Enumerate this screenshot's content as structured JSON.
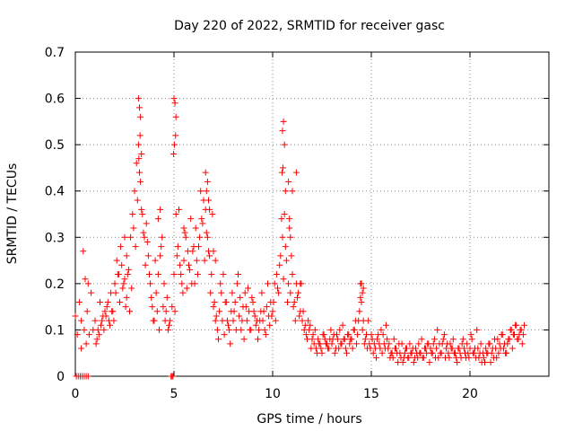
{
  "chart_data": {
    "type": "scatter",
    "title": "Day 220 of 2022, SRMTID for receiver gasc",
    "xlabel": "GPS time / hours",
    "ylabel": "SRMTID / TECUs",
    "xlim": [
      0,
      24
    ],
    "ylim": [
      0,
      0.7
    ],
    "xticks": [
      0,
      5,
      10,
      15,
      20
    ],
    "yticks": [
      0,
      0.1,
      0.2,
      0.3,
      0.4,
      0.5,
      0.6,
      0.7
    ],
    "xtick_labels": [
      "0",
      "5",
      "10",
      "15",
      "20"
    ],
    "ytick_labels": [
      "0",
      "0.1",
      "0.2",
      "0.3",
      "0.4",
      "0.5",
      "0.6",
      "0.7"
    ],
    "grid": true,
    "marker": "+",
    "color": "#ff0000",
    "series": [
      {
        "name": "SRMTID",
        "x": [
          0.0,
          0.1,
          0.2,
          0.3,
          0.4,
          0.5,
          0.6,
          0.7,
          0.8,
          0.9,
          1.0,
          1.1,
          1.2,
          1.3,
          1.4,
          1.5,
          1.6,
          1.7,
          1.8,
          1.9,
          2.0,
          2.1,
          2.2,
          2.3,
          2.4,
          2.5,
          2.6,
          2.7,
          2.8,
          2.9,
          3.0,
          3.1,
          3.2,
          3.3,
          3.4,
          3.5,
          3.6,
          3.7,
          3.8,
          3.9,
          4.0,
          4.1,
          4.2,
          4.3,
          4.4,
          4.5,
          4.6,
          4.7,
          4.8,
          4.9,
          5.0,
          5.1,
          5.2,
          5.3,
          5.4,
          5.5,
          5.6,
          5.7,
          5.8,
          5.9,
          6.0,
          6.1,
          6.2,
          6.3,
          6.4,
          6.5,
          6.6,
          6.7,
          6.8,
          6.9,
          7.0,
          7.1,
          7.2,
          7.3,
          7.4,
          7.5,
          7.6,
          7.7,
          7.8,
          7.9,
          8.0,
          8.1,
          8.2,
          8.3,
          8.4,
          8.5,
          8.6,
          8.7,
          8.8,
          8.9,
          9.0,
          9.1,
          9.2,
          9.3,
          9.4,
          9.5,
          9.6,
          9.7,
          9.8,
          9.9,
          10.0,
          10.1,
          10.2,
          10.3,
          10.4,
          10.5,
          10.6,
          10.7,
          10.8,
          10.9,
          11.0,
          11.1,
          11.2,
          11.3,
          11.4,
          11.5,
          11.6,
          11.7,
          11.8,
          11.9,
          12.0,
          12.1,
          12.2,
          12.3,
          12.4,
          12.5,
          12.6,
          12.7,
          12.8,
          12.9,
          13.0,
          13.1,
          13.2,
          13.3,
          13.4,
          13.5,
          13.6,
          13.7,
          13.8,
          13.9,
          14.0,
          14.1,
          14.2,
          14.3,
          14.4,
          14.5,
          14.6,
          14.7,
          14.8,
          14.9,
          15.0,
          15.1,
          15.2,
          15.3,
          15.4,
          15.5,
          15.6,
          15.7,
          15.8,
          15.9,
          16.0,
          16.1,
          16.2,
          16.3,
          16.4,
          16.5,
          16.6,
          16.7,
          16.8,
          16.9,
          17.0,
          17.1,
          17.2,
          17.3,
          17.4,
          17.5,
          17.6,
          17.7,
          17.8,
          17.9,
          18.0,
          18.1,
          18.2,
          18.3,
          18.4,
          18.5,
          18.6,
          18.7,
          18.8,
          18.9,
          19.0,
          19.1,
          19.2,
          19.3,
          19.4,
          19.5,
          19.6,
          19.7,
          19.8,
          19.9,
          20.0,
          20.1,
          20.2,
          20.3,
          20.4,
          20.5,
          20.6,
          20.7,
          20.8,
          20.9,
          21.0,
          21.1,
          21.2,
          21.3,
          21.4,
          21.5,
          21.6,
          21.7,
          21.8,
          21.9,
          22.0,
          22.1,
          22.2,
          22.3,
          22.4,
          22.5,
          22.6,
          22.7,
          0.05,
          0.15,
          0.25,
          0.35,
          0.45,
          0.55,
          0.65,
          4.85,
          4.9,
          4.95,
          0.3,
          0.45,
          0.55,
          0.65,
          1.05,
          1.15,
          1.25,
          1.35,
          1.45,
          1.55,
          1.65,
          1.75,
          1.85,
          1.95,
          2.05,
          2.15,
          2.25,
          2.35,
          2.45,
          2.55,
          2.65,
          2.75,
          2.85,
          2.95,
          3.05,
          3.15,
          3.25,
          3.35,
          3.45,
          3.55,
          3.65,
          3.75,
          3.85,
          3.95,
          4.05,
          4.15,
          4.25,
          4.35,
          4.45,
          4.55,
          4.65,
          4.75,
          5.05,
          5.15,
          5.25,
          5.35,
          5.45,
          5.55,
          5.65,
          5.75,
          5.85,
          5.95,
          6.05,
          6.15,
          6.25,
          6.35,
          6.45,
          6.55,
          6.65,
          6.75,
          6.85,
          6.95,
          7.05,
          7.15,
          7.25,
          7.35,
          7.45,
          7.55,
          7.65,
          7.75,
          7.85,
          7.95,
          8.05,
          8.15,
          8.25,
          8.35,
          8.45,
          8.55,
          8.65,
          8.75,
          8.85,
          8.95,
          9.05,
          9.15,
          9.25,
          9.35,
          9.45,
          9.55,
          9.65,
          9.75,
          9.85,
          9.95,
          10.05,
          10.15,
          10.25,
          10.35,
          10.45,
          10.55,
          10.65,
          10.75,
          10.85,
          10.95,
          11.05,
          11.15,
          11.25,
          11.35,
          11.45,
          11.55,
          11.65,
          11.75,
          11.85,
          11.95,
          12.05,
          12.15,
          12.25,
          12.35,
          12.45,
          12.55,
          12.65,
          12.75,
          12.85,
          12.95,
          13.05,
          13.15,
          13.25,
          13.35,
          13.45,
          13.55,
          13.65,
          13.75,
          13.85,
          13.95,
          14.05,
          14.15,
          14.25,
          14.35,
          14.45,
          14.55,
          14.65,
          14.75,
          14.85,
          14.95,
          15.05,
          15.15,
          15.25,
          15.35,
          15.45,
          15.55,
          15.65,
          15.75,
          15.85,
          15.95,
          16.05,
          16.15,
          16.25,
          16.35,
          16.45,
          16.55,
          16.65,
          16.75,
          16.85,
          16.95,
          17.05,
          17.15,
          17.25,
          17.35,
          17.45,
          17.55,
          17.65,
          17.75,
          17.85,
          17.95,
          18.05,
          18.15,
          18.25,
          18.35,
          18.45,
          18.55,
          18.65,
          18.75,
          18.85,
          18.95,
          19.05,
          19.15,
          19.25,
          19.35,
          19.45,
          19.55,
          19.65,
          19.75,
          19.85,
          19.95,
          20.05,
          20.15,
          20.25,
          20.35,
          20.45,
          20.55,
          20.65,
          20.75,
          20.85,
          20.95,
          21.05,
          21.15,
          21.25,
          21.35,
          21.45,
          21.55,
          21.65,
          21.75,
          21.85,
          21.95,
          22.05,
          22.15,
          22.25,
          22.35,
          22.45,
          22.55,
          22.65,
          22.75,
          3.2,
          3.25,
          3.3,
          3.28,
          3.22,
          3.35,
          5.0,
          5.05,
          5.1,
          5.08,
          5.02,
          4.98,
          10.5,
          10.55,
          10.6,
          10.52,
          10.48,
          10.65,
          6.6,
          6.7,
          6.65,
          6.75,
          6.8,
          10.8,
          10.85,
          10.9,
          11.0,
          11.2,
          14.5,
          14.55,
          14.6,
          14.45,
          11.4,
          7.0,
          7.1,
          2.5,
          2.6,
          4.2,
          4.3,
          5.5
        ],
        "y": [
          0.13,
          0.09,
          0.16,
          0.12,
          0.27,
          0.21,
          0.14,
          0.09,
          0.18,
          0.1,
          0.12,
          0.08,
          0.09,
          0.11,
          0.13,
          0.14,
          0.15,
          0.12,
          0.18,
          0.14,
          0.2,
          0.25,
          0.22,
          0.28,
          0.19,
          0.21,
          0.17,
          0.23,
          0.3,
          0.35,
          0.4,
          0.46,
          0.5,
          0.42,
          0.35,
          0.3,
          0.33,
          0.26,
          0.2,
          0.15,
          0.12,
          0.18,
          0.22,
          0.26,
          0.3,
          0.2,
          0.14,
          0.1,
          0.12,
          0.15,
          0.22,
          0.35,
          0.28,
          0.24,
          0.2,
          0.25,
          0.3,
          0.27,
          0.23,
          0.2,
          0.28,
          0.32,
          0.22,
          0.3,
          0.34,
          0.38,
          0.36,
          0.3,
          0.26,
          0.22,
          0.15,
          0.12,
          0.1,
          0.14,
          0.18,
          0.22,
          0.16,
          0.12,
          0.1,
          0.14,
          0.12,
          0.16,
          0.2,
          0.13,
          0.1,
          0.15,
          0.18,
          0.12,
          0.14,
          0.1,
          0.16,
          0.13,
          0.12,
          0.1,
          0.14,
          0.12,
          0.1,
          0.15,
          0.13,
          0.16,
          0.14,
          0.2,
          0.22,
          0.18,
          0.26,
          0.3,
          0.35,
          0.25,
          0.2,
          0.18,
          0.22,
          0.16,
          0.2,
          0.18,
          0.14,
          0.12,
          0.1,
          0.09,
          0.12,
          0.11,
          0.08,
          0.07,
          0.06,
          0.08,
          0.07,
          0.05,
          0.09,
          0.07,
          0.06,
          0.08,
          0.07,
          0.09,
          0.06,
          0.08,
          0.1,
          0.07,
          0.08,
          0.06,
          0.09,
          0.07,
          0.08,
          0.1,
          0.12,
          0.09,
          0.14,
          0.16,
          0.12,
          0.08,
          0.06,
          0.07,
          0.09,
          0.05,
          0.06,
          0.08,
          0.07,
          0.1,
          0.09,
          0.06,
          0.08,
          0.07,
          0.05,
          0.04,
          0.06,
          0.05,
          0.07,
          0.04,
          0.03,
          0.05,
          0.06,
          0.04,
          0.05,
          0.06,
          0.04,
          0.05,
          0.07,
          0.05,
          0.04,
          0.06,
          0.05,
          0.07,
          0.06,
          0.05,
          0.08,
          0.06,
          0.04,
          0.05,
          0.07,
          0.09,
          0.06,
          0.05,
          0.07,
          0.06,
          0.05,
          0.04,
          0.06,
          0.05,
          0.07,
          0.06,
          0.04,
          0.05,
          0.06,
          0.08,
          0.05,
          0.04,
          0.06,
          0.05,
          0.03,
          0.04,
          0.06,
          0.05,
          0.07,
          0.05,
          0.04,
          0.06,
          0.08,
          0.07,
          0.09,
          0.06,
          0.05,
          0.07,
          0.08,
          0.1,
          0.09,
          0.11,
          0.08,
          0.09,
          0.1,
          0.09,
          0.0,
          0.0,
          0.0,
          0.0,
          0.0,
          0.0,
          0.0,
          0.0,
          0.0,
          0.0,
          0.06,
          0.1,
          0.07,
          0.2,
          0.07,
          0.1,
          0.16,
          0.12,
          0.1,
          0.13,
          0.16,
          0.11,
          0.14,
          0.12,
          0.18,
          0.22,
          0.16,
          0.24,
          0.2,
          0.15,
          0.22,
          0.14,
          0.19,
          0.32,
          0.28,
          0.38,
          0.44,
          0.36,
          0.31,
          0.24,
          0.29,
          0.22,
          0.17,
          0.12,
          0.25,
          0.14,
          0.1,
          0.28,
          0.15,
          0.12,
          0.17,
          0.11,
          0.14,
          0.26,
          0.36,
          0.22,
          0.18,
          0.31,
          0.19,
          0.24,
          0.34,
          0.27,
          0.2,
          0.25,
          0.28,
          0.4,
          0.33,
          0.25,
          0.31,
          0.27,
          0.18,
          0.35,
          0.16,
          0.13,
          0.08,
          0.2,
          0.12,
          0.09,
          0.16,
          0.11,
          0.07,
          0.18,
          0.14,
          0.1,
          0.22,
          0.17,
          0.12,
          0.08,
          0.15,
          0.19,
          0.1,
          0.17,
          0.14,
          0.11,
          0.08,
          0.12,
          0.18,
          0.14,
          0.09,
          0.2,
          0.11,
          0.13,
          0.16,
          0.12,
          0.19,
          0.24,
          0.34,
          0.21,
          0.28,
          0.16,
          0.32,
          0.26,
          0.15,
          0.12,
          0.17,
          0.13,
          0.2,
          0.14,
          0.11,
          0.08,
          0.1,
          0.06,
          0.09,
          0.1,
          0.05,
          0.07,
          0.06,
          0.09,
          0.08,
          0.07,
          0.06,
          0.1,
          0.08,
          0.05,
          0.09,
          0.06,
          0.07,
          0.11,
          0.08,
          0.05,
          0.09,
          0.08,
          0.06,
          0.1,
          0.07,
          0.12,
          0.2,
          0.1,
          0.07,
          0.09,
          0.12,
          0.06,
          0.08,
          0.07,
          0.04,
          0.09,
          0.06,
          0.05,
          0.07,
          0.11,
          0.06,
          0.04,
          0.05,
          0.08,
          0.06,
          0.03,
          0.05,
          0.07,
          0.04,
          0.06,
          0.04,
          0.07,
          0.05,
          0.03,
          0.06,
          0.04,
          0.05,
          0.08,
          0.04,
          0.06,
          0.07,
          0.03,
          0.05,
          0.07,
          0.04,
          0.1,
          0.07,
          0.05,
          0.08,
          0.04,
          0.07,
          0.04,
          0.06,
          0.08,
          0.05,
          0.03,
          0.06,
          0.04,
          0.08,
          0.05,
          0.07,
          0.04,
          0.09,
          0.05,
          0.06,
          0.1,
          0.04,
          0.07,
          0.05,
          0.03,
          0.05,
          0.07,
          0.03,
          0.06,
          0.08,
          0.04,
          0.05,
          0.06,
          0.09,
          0.07,
          0.05,
          0.08,
          0.1,
          0.06,
          0.09,
          0.11,
          0.08,
          0.1,
          0.07,
          0.11,
          0.6,
          0.58,
          0.56,
          0.52,
          0.47,
          0.48,
          0.6,
          0.59,
          0.56,
          0.52,
          0.5,
          0.48,
          0.53,
          0.55,
          0.5,
          0.45,
          0.44,
          0.4,
          0.44,
          0.42,
          0.4,
          0.38,
          0.36,
          0.42,
          0.34,
          0.3,
          0.4,
          0.44,
          0.2,
          0.18,
          0.19,
          0.17,
          0.2,
          0.27,
          0.25,
          0.3,
          0.26,
          0.34,
          0.36,
          0.32
        ]
      }
    ]
  }
}
